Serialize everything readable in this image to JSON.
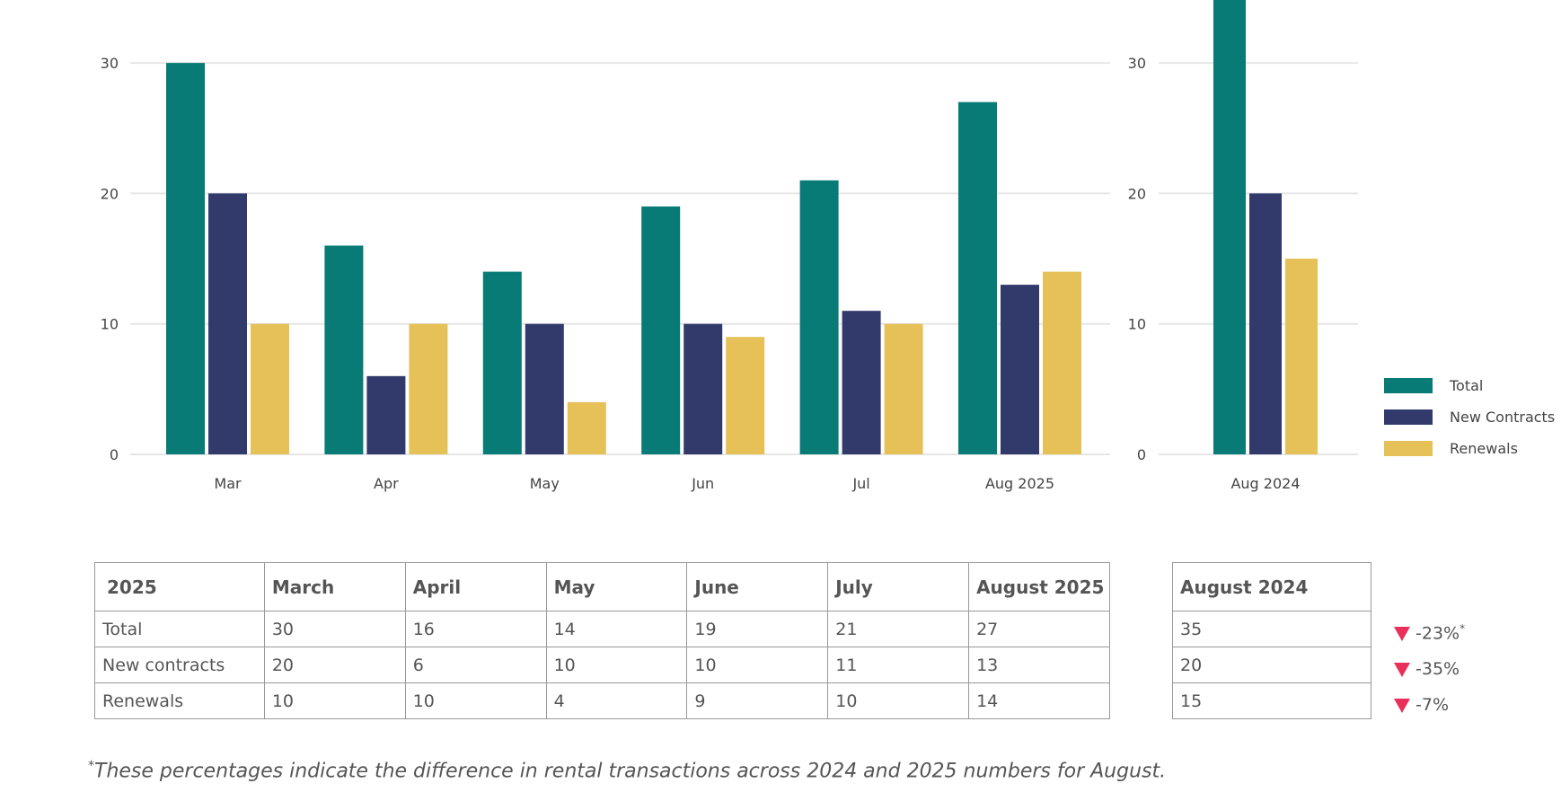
{
  "colors": {
    "total": "#087b76",
    "new_contracts": "#313a6b",
    "renewals": "#e6c157",
    "down": "#e8305a"
  },
  "chart_data": [
    {
      "type": "bar",
      "categories": [
        "Mar",
        "Apr",
        "May",
        "Jun",
        "Jul",
        "Aug 2025"
      ],
      "series": [
        {
          "name": "Total",
          "values": [
            30,
            16,
            14,
            19,
            21,
            27
          ]
        },
        {
          "name": "New Contracts",
          "values": [
            20,
            6,
            10,
            10,
            11,
            13
          ]
        },
        {
          "name": "Renewals",
          "values": [
            10,
            10,
            4,
            9,
            10,
            14
          ]
        }
      ],
      "yticks": [
        0,
        10,
        20,
        30
      ],
      "ylim": [
        0,
        35
      ],
      "grid": true
    },
    {
      "type": "bar",
      "categories": [
        "Aug 2024"
      ],
      "series": [
        {
          "name": "Total",
          "values": [
            35
          ]
        },
        {
          "name": "New Contracts",
          "values": [
            20
          ]
        },
        {
          "name": "Renewals",
          "values": [
            15
          ]
        }
      ],
      "yticks": [
        0,
        10,
        20,
        30
      ],
      "ylim": [
        0,
        35
      ],
      "grid": true,
      "legend": {
        "position": "right",
        "entries": [
          "Total",
          "New Contracts",
          "Renewals"
        ]
      }
    }
  ],
  "table": {
    "headers": [
      "2025",
      "March",
      "April",
      "May",
      "June",
      "July",
      "August 2025"
    ],
    "rows": [
      [
        "Total",
        "30",
        "16",
        "14",
        "19",
        "21",
        "27"
      ],
      [
        "New contracts",
        "20",
        "6",
        "10",
        "10",
        "11",
        "13"
      ],
      [
        "Renewals",
        "10",
        "10",
        "4",
        "9",
        "10",
        "14"
      ]
    ]
  },
  "aug2024_table": {
    "header": "August 2024",
    "values": [
      "35",
      "20",
      "15"
    ]
  },
  "changes": [
    {
      "value": "-23%",
      "marker": "*"
    },
    {
      "value": "-35%"
    },
    {
      "value": "-7%"
    }
  ],
  "footnote": {
    "marker": "*",
    "text": "These percentages indicate the difference in rental transactions across 2024 and 2025 numbers for August."
  }
}
